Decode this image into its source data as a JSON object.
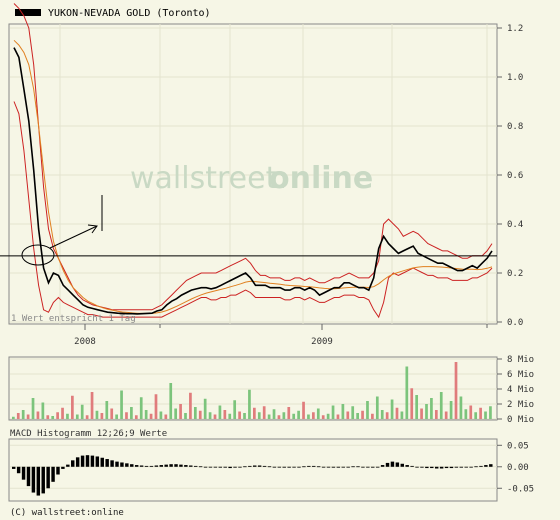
{
  "chart_data": [
    {
      "type": "line",
      "title": "YUKON-NEVADA GOLD (Toronto)",
      "x_tick_labels": [
        "2008",
        "2009"
      ],
      "ylim": [
        0,
        1.2
      ],
      "y_tick_labels": [
        "1.2",
        "1.0",
        "0.8",
        "0.6",
        "0.4",
        "0.2",
        "0.0"
      ],
      "y_ticks": [
        1.2,
        1.0,
        0.8,
        0.6,
        0.4,
        0.2,
        0.0
      ],
      "grid": true,
      "reference_line": 0.27,
      "annotation": "1 Wert entspricht 1 Tag",
      "series": [
        {
          "color": "#000000",
          "values": [
            1.12,
            1.08,
            0.95,
            0.82,
            0.62,
            0.38,
            0.22,
            0.16,
            0.2,
            0.19,
            0.15,
            0.13,
            0.11,
            0.09,
            0.07,
            0.06,
            0.055,
            0.05,
            0.045,
            0.04,
            0.038,
            0.036,
            0.035,
            0.034,
            0.034,
            0.033,
            0.034,
            0.035,
            0.036,
            0.045,
            0.05,
            0.07,
            0.085,
            0.095,
            0.11,
            0.12,
            0.13,
            0.135,
            0.14,
            0.14,
            0.135,
            0.14,
            0.15,
            0.16,
            0.17,
            0.18,
            0.19,
            0.2,
            0.18,
            0.15,
            0.15,
            0.15,
            0.14,
            0.14,
            0.14,
            0.13,
            0.13,
            0.14,
            0.14,
            0.13,
            0.14,
            0.13,
            0.11,
            0.12,
            0.13,
            0.14,
            0.14,
            0.16,
            0.16,
            0.15,
            0.14,
            0.14,
            0.13,
            0.18,
            0.3,
            0.35,
            0.32,
            0.3,
            0.28,
            0.29,
            0.3,
            0.31,
            0.28,
            0.27,
            0.26,
            0.25,
            0.24,
            0.24,
            0.23,
            0.22,
            0.21,
            0.21,
            0.22,
            0.23,
            0.22,
            0.24,
            0.26,
            0.29
          ]
        },
        {
          "color": "#cc2222",
          "values": [
            1.3,
            1.28,
            1.25,
            1.2,
            1.05,
            0.8,
            0.55,
            0.38,
            0.3,
            0.26,
            0.22,
            0.18,
            0.14,
            0.11,
            0.09,
            0.08,
            0.07,
            0.065,
            0.06,
            0.055,
            0.05,
            0.05,
            0.05,
            0.05,
            0.05,
            0.05,
            0.05,
            0.05,
            0.05,
            0.06,
            0.07,
            0.09,
            0.11,
            0.13,
            0.15,
            0.17,
            0.18,
            0.19,
            0.2,
            0.2,
            0.2,
            0.2,
            0.21,
            0.22,
            0.23,
            0.24,
            0.25,
            0.26,
            0.24,
            0.21,
            0.19,
            0.19,
            0.18,
            0.18,
            0.18,
            0.17,
            0.17,
            0.18,
            0.18,
            0.17,
            0.18,
            0.17,
            0.16,
            0.16,
            0.17,
            0.18,
            0.18,
            0.19,
            0.2,
            0.19,
            0.18,
            0.18,
            0.18,
            0.2,
            0.25,
            0.4,
            0.42,
            0.4,
            0.38,
            0.35,
            0.36,
            0.37,
            0.36,
            0.34,
            0.32,
            0.31,
            0.3,
            0.29,
            0.29,
            0.28,
            0.27,
            0.26,
            0.26,
            0.27,
            0.27,
            0.27,
            0.29,
            0.32
          ]
        },
        {
          "color": "#cc2222",
          "values": [
            0.9,
            0.85,
            0.7,
            0.5,
            0.3,
            0.15,
            0.05,
            0.04,
            0.08,
            0.1,
            0.08,
            0.07,
            0.06,
            0.05,
            0.04,
            0.03,
            0.03,
            0.025,
            0.02,
            0.02,
            0.02,
            0.02,
            0.02,
            0.02,
            0.02,
            0.02,
            0.02,
            0.02,
            0.02,
            0.02,
            0.02,
            0.03,
            0.04,
            0.05,
            0.06,
            0.07,
            0.08,
            0.09,
            0.1,
            0.1,
            0.09,
            0.09,
            0.1,
            0.1,
            0.11,
            0.11,
            0.12,
            0.13,
            0.12,
            0.1,
            0.1,
            0.1,
            0.1,
            0.1,
            0.1,
            0.09,
            0.09,
            0.1,
            0.1,
            0.09,
            0.1,
            0.09,
            0.08,
            0.08,
            0.09,
            0.1,
            0.1,
            0.11,
            0.11,
            0.11,
            0.1,
            0.1,
            0.09,
            0.05,
            0.02,
            0.08,
            0.18,
            0.2,
            0.19,
            0.2,
            0.21,
            0.22,
            0.21,
            0.2,
            0.19,
            0.19,
            0.18,
            0.18,
            0.18,
            0.17,
            0.17,
            0.17,
            0.17,
            0.18,
            0.18,
            0.19,
            0.2,
            0.22
          ]
        },
        {
          "color": "#e08020",
          "values": [
            1.15,
            1.13,
            1.1,
            1.05,
            0.95,
            0.8,
            0.62,
            0.45,
            0.33,
            0.26,
            0.21,
            0.17,
            0.14,
            0.12,
            0.1,
            0.085,
            0.075,
            0.065,
            0.058,
            0.052,
            0.048,
            0.044,
            0.041,
            0.039,
            0.037,
            0.036,
            0.035,
            0.035,
            0.035,
            0.037,
            0.041,
            0.047,
            0.055,
            0.064,
            0.074,
            0.084,
            0.094,
            0.103,
            0.111,
            0.118,
            0.123,
            0.128,
            0.133,
            0.138,
            0.144,
            0.15,
            0.156,
            0.163,
            0.166,
            0.165,
            0.163,
            0.161,
            0.158,
            0.156,
            0.154,
            0.151,
            0.149,
            0.148,
            0.147,
            0.145,
            0.144,
            0.142,
            0.139,
            0.137,
            0.136,
            0.136,
            0.137,
            0.139,
            0.141,
            0.142,
            0.142,
            0.142,
            0.141,
            0.144,
            0.156,
            0.172,
            0.186,
            0.196,
            0.203,
            0.209,
            0.215,
            0.221,
            0.224,
            0.226,
            0.226,
            0.226,
            0.225,
            0.224,
            0.222,
            0.22,
            0.218,
            0.216,
            0.215,
            0.215,
            0.214,
            0.215,
            0.219,
            0.225
          ]
        }
      ]
    },
    {
      "type": "bar",
      "y_tick_labels": [
        "8 Mio",
        "6 Mio",
        "4 Mio",
        "2 Mio",
        "0 Mio"
      ],
      "y_ticks": [
        8,
        6,
        4,
        2,
        0
      ],
      "ylim": [
        0,
        8
      ],
      "up_color": "#7cc47c",
      "down_color": "#e07c7c",
      "values": [
        0.3,
        0.8,
        1.2,
        0.6,
        2.8,
        1.0,
        2.2,
        0.5,
        0.4,
        0.9,
        1.5,
        0.7,
        3.1,
        0.6,
        1.9,
        0.5,
        3.6,
        1.1,
        0.8,
        2.4,
        1.4,
        0.6,
        3.8,
        0.9,
        1.6,
        0.5,
        2.9,
        1.2,
        0.7,
        3.3,
        1.0,
        0.6,
        4.8,
        1.4,
        2.0,
        0.8,
        3.5,
        1.6,
        1.1,
        2.7,
        0.9,
        0.6,
        1.8,
        1.2,
        0.7,
        2.5,
        1.0,
        0.8,
        3.9,
        1.5,
        0.9,
        1.7,
        0.6,
        1.3,
        0.5,
        0.9,
        1.6,
        0.7,
        1.1,
        2.3,
        0.6,
        0.9,
        1.4,
        0.5,
        0.7,
        1.8,
        0.6,
        2.0,
        1.0,
        1.7,
        0.8,
        1.1,
        2.4,
        0.7,
        3.0,
        1.2,
        0.9,
        2.6,
        1.5,
        1.0,
        7.0,
        4.1,
        3.2,
        1.4,
        2.0,
        2.8,
        1.2,
        3.6,
        1.0,
        2.4,
        7.6,
        3.0,
        1.3,
        1.8,
        0.9,
        1.5,
        1.0,
        1.7
      ],
      "up_flags": [
        1,
        0,
        1,
        0,
        1,
        0,
        1,
        0,
        1,
        0,
        0,
        1,
        0,
        1,
        1,
        0,
        0,
        1,
        0,
        1,
        0,
        1,
        1,
        0,
        1,
        0,
        1,
        1,
        0,
        0,
        1,
        0,
        1,
        1,
        0,
        1,
        0,
        1,
        0,
        1,
        1,
        0,
        1,
        0,
        1,
        1,
        0,
        1,
        1,
        0,
        1,
        0,
        1,
        1,
        0,
        1,
        0,
        1,
        1,
        0,
        1,
        0,
        1,
        0,
        1,
        1,
        0,
        1,
        0,
        1,
        1,
        0,
        1,
        0,
        1,
        1,
        0,
        1,
        0,
        1,
        1,
        0,
        1,
        0,
        1,
        1,
        0,
        1,
        0,
        1,
        0,
        1,
        1,
        0,
        1,
        0,
        1,
        1
      ]
    },
    {
      "type": "bar",
      "title": "MACD Histogramm 12;26;9 Werte",
      "y_tick_labels": [
        "0.05",
        "0.00",
        "-0.05"
      ],
      "y_ticks": [
        0.05,
        0.0,
        -0.05
      ],
      "ylim": [
        -0.075,
        0.06
      ],
      "values": [
        -0.005,
        -0.015,
        -0.03,
        -0.045,
        -0.06,
        -0.067,
        -0.062,
        -0.05,
        -0.035,
        -0.018,
        -0.005,
        0.005,
        0.015,
        0.022,
        0.026,
        0.027,
        0.026,
        0.024,
        0.021,
        0.018,
        0.015,
        0.012,
        0.01,
        0.008,
        0.006,
        0.004,
        0.003,
        0.002,
        0.002,
        0.003,
        0.004,
        0.005,
        0.006,
        0.006,
        0.005,
        0.004,
        0.003,
        0.002,
        0.001,
        0.0,
        -0.001,
        -0.001,
        -0.002,
        -0.002,
        -0.003,
        -0.002,
        -0.001,
        0.001,
        0.002,
        0.003,
        0.003,
        0.002,
        0.001,
        0.0,
        -0.001,
        -0.002,
        -0.002,
        -0.001,
        0.0,
        0.001,
        0.002,
        0.002,
        0.001,
        0.0,
        -0.001,
        -0.002,
        -0.002,
        -0.001,
        0.0,
        0.001,
        0.001,
        0.0,
        -0.001,
        -0.002,
        -0.001,
        0.004,
        0.009,
        0.012,
        0.01,
        0.007,
        0.004,
        0.002,
        0.0,
        -0.002,
        -0.003,
        -0.003,
        -0.004,
        -0.004,
        -0.003,
        -0.003,
        -0.002,
        -0.002,
        -0.001,
        0.0,
        0.001,
        0.002,
        0.004,
        0.006
      ]
    }
  ],
  "watermark": {
    "part1": "wallstreet:",
    "part2": "online"
  },
  "footer": "(C) wallstreet:online"
}
